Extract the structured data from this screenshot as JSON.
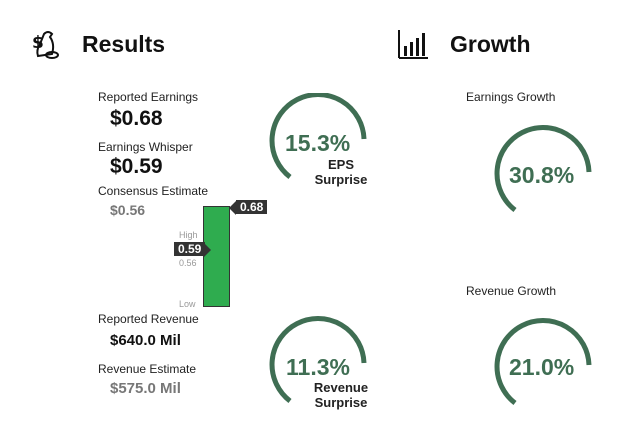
{
  "results": {
    "title": "Results",
    "icon": "money-bag-icon",
    "reported_earnings_label": "Reported Earnings",
    "reported_earnings_value": "$0.68",
    "earnings_whisper_label": "Earnings Whisper",
    "earnings_whisper_value": "$0.59",
    "consensus_label": "Consensus Estimate",
    "consensus_value": "$0.56",
    "reported_revenue_label": "Reported Revenue",
    "reported_revenue_value": "$640.0 Mil",
    "revenue_estimate_label": "Revenue Estimate",
    "revenue_estimate_value": "$575.0 Mil"
  },
  "eps_bar": {
    "actual_flag": "0.68",
    "whisper_flag": "0.59",
    "consensus_tick": "0.56",
    "high_label": "High",
    "low_label": "Low"
  },
  "eps_surprise": {
    "percent": "15.3%",
    "caption_line1": "EPS",
    "caption_line2": "Surprise",
    "fill": 0.72
  },
  "revenue_surprise": {
    "percent": "11.3%",
    "caption_line1": "Revenue",
    "caption_line2": "Surprise",
    "fill": 0.72
  },
  "growth": {
    "title": "Growth",
    "icon": "bar-chart-icon",
    "earnings_growth_label": "Earnings Growth",
    "earnings_growth_value": "30.8%",
    "revenue_growth_label": "Revenue Growth",
    "revenue_growth_value": "21.0%"
  },
  "colors": {
    "gauge": "#3f6e53",
    "bar": "#2fac4f",
    "flag": "#333333"
  }
}
